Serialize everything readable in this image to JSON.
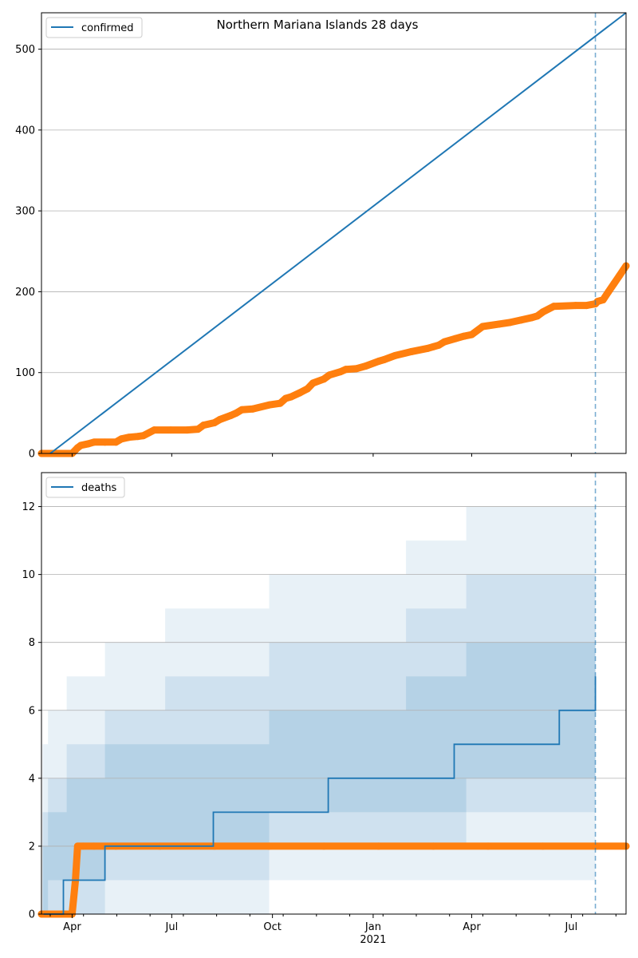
{
  "title": "Northern Mariana Islands 28 days",
  "chart_data": [
    {
      "type": "line",
      "title": "Northern Mariana Islands 28 days",
      "legend": {
        "label": "confirmed",
        "placement": "top-left"
      },
      "xlabel": "",
      "ylabel": "",
      "grid": "y",
      "xlim_days": [
        -8,
        526
      ],
      "ylim": [
        0,
        545
      ],
      "y_ticks": [
        0,
        100,
        200,
        300,
        400,
        500
      ],
      "cutoff_day": 498,
      "fit_line": {
        "x": [
          0,
          526
        ],
        "y": [
          0,
          545
        ]
      },
      "observed": {
        "color": "#ff7f0e",
        "x": [
          -8,
          20,
          25,
          28,
          35,
          40,
          50,
          60,
          65,
          72,
          80,
          85,
          95,
          110,
          125,
          135,
          140,
          150,
          155,
          165,
          170,
          175,
          185,
          200,
          210,
          215,
          220,
          228,
          235,
          240,
          250,
          255,
          265,
          270,
          280,
          288,
          300,
          305,
          315,
          330,
          345,
          350,
          355,
          360,
          370,
          378,
          385,
          395,
          400,
          410,
          420,
          430,
          440,
          445,
          450,
          460,
          480,
          490,
          498,
          500,
          505,
          510,
          515,
          520,
          526
        ],
        "y": [
          0,
          0,
          7,
          10,
          12,
          14,
          14,
          14,
          18,
          20,
          21,
          22,
          29,
          29,
          29,
          30,
          35,
          38,
          42,
          47,
          50,
          54,
          55,
          60,
          62,
          68,
          70,
          75,
          80,
          87,
          92,
          97,
          101,
          104,
          105,
          108,
          114,
          116,
          121,
          126,
          130,
          132,
          134,
          138,
          142,
          145,
          147,
          157,
          158,
          160,
          162,
          165,
          168,
          170,
          175,
          182,
          183,
          183,
          185,
          188,
          190,
          200,
          210,
          220,
          232
        ]
      }
    },
    {
      "type": "line",
      "legend": {
        "label": "deaths",
        "placement": "top-left"
      },
      "xlabel": "",
      "ylabel": "",
      "grid": "y",
      "xlim_days": [
        -8,
        526
      ],
      "ylim": [
        0,
        13
      ],
      "y_ticks": [
        0,
        2,
        4,
        6,
        8,
        10,
        12
      ],
      "x_ticks": [
        {
          "day": 20,
          "label": "Apr"
        },
        {
          "day": 111,
          "label": "Jul"
        },
        {
          "day": 203,
          "label": "Oct"
        },
        {
          "day": 295,
          "label": "Jan",
          "sublabel": "2021"
        },
        {
          "day": 385,
          "label": "Apr"
        },
        {
          "day": 476,
          "label": "Jul"
        }
      ],
      "cutoff_day": 498,
      "fit_steps": {
        "days": [
          -6,
          12,
          50,
          149,
          254,
          369,
          465,
          498
        ],
        "values": [
          0,
          1,
          2,
          3,
          4,
          5,
          6,
          7
        ]
      },
      "bands": [
        {
          "opacity": 0.1,
          "days": [
            -7,
            -2,
            15,
            50,
            105,
            200,
            325,
            380,
            498
          ],
          "upper": [
            5,
            6,
            7,
            8,
            9,
            10,
            11,
            12,
            13
          ],
          "lower": [
            0,
            0,
            0,
            0,
            0,
            1,
            1,
            1,
            3
          ]
        },
        {
          "opacity": 0.12,
          "days": [
            -7,
            -2,
            15,
            50,
            105,
            200,
            325,
            380,
            498
          ],
          "upper": [
            3,
            4,
            5,
            6,
            7,
            8,
            9,
            10,
            11
          ],
          "lower": [
            0,
            0,
            0,
            1,
            1,
            2,
            2,
            3,
            3
          ]
        },
        {
          "opacity": 0.14,
          "days": [
            -7,
            -2,
            15,
            50,
            105,
            200,
            325,
            380,
            498
          ],
          "upper": [
            2,
            3,
            4,
            5,
            5,
            6,
            7,
            8,
            9
          ],
          "lower": [
            0,
            1,
            1,
            2,
            2,
            3,
            3,
            4,
            5
          ]
        }
      ],
      "observed": {
        "color": "#ff7f0e",
        "x": [
          -8,
          20,
          23,
          25,
          30,
          40,
          60,
          100,
          150,
          200,
          250,
          300,
          350,
          400,
          450,
          498,
          526
        ],
        "y": [
          0,
          0,
          1,
          2,
          2,
          2,
          2,
          2,
          2,
          2,
          2,
          2,
          2,
          2,
          2,
          2,
          2
        ]
      }
    }
  ]
}
